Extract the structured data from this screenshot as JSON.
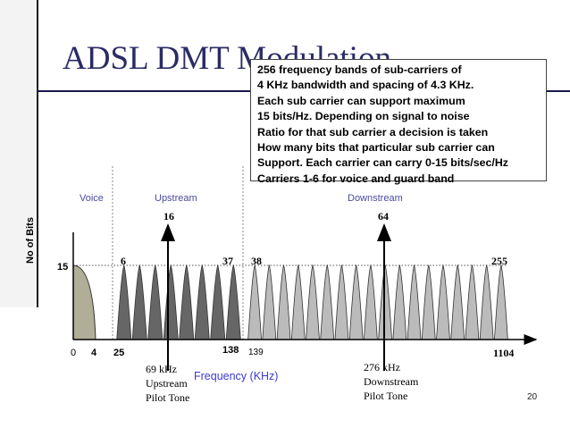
{
  "slide": {
    "title": "ADSL DMT Modulation",
    "page_number": "20"
  },
  "note": {
    "lines": [
      "256 frequency bands of sub-carriers of",
      "4 KHz bandwidth and spacing of 4.3 KHz.",
      "Each sub carrier can support maximum",
      "15  bits/Hz. Depending on signal to noise",
      "Ratio for that sub carrier a decision is taken",
      "How many bits that particular sub carrier can",
      "Support. Each carrier can carry 0-15 bits/sec/Hz",
      "Carriers 1-6 for voice and guard band"
    ]
  },
  "diagram": {
    "y_axis_label": "No of Bits",
    "y_tick": "15",
    "x_axis_label": "Frequency (KHz)",
    "x_ticks": {
      "origin": "0",
      "t4": "4",
      "t25": "25",
      "t138": "138",
      "t139": "139",
      "t1104": "1104"
    },
    "bands": {
      "voice": "Voice",
      "upstream": "Upstream",
      "downstream": "Downstream"
    },
    "carrier_labels": {
      "c16": "16",
      "c64": "64",
      "c6": "6",
      "c37": "37",
      "c38": "38",
      "c255": "255"
    },
    "pilot_upstream": [
      "69 kHz",
      "Upstream",
      "Pilot Tone"
    ],
    "pilot_downstream": [
      "276 kHz",
      "Downstream",
      "Pilot Tone"
    ],
    "upstream_carrier_count": 8,
    "downstream_carrier_count": 18,
    "colors": {
      "title": "#2b2b66",
      "band_label": "#4a4aa0",
      "frequency_label": "#3a3ad0",
      "upstream_fill": "#666666",
      "downstream_fill": "#bbbbbb",
      "voice_fill": "#b0ad98"
    }
  }
}
